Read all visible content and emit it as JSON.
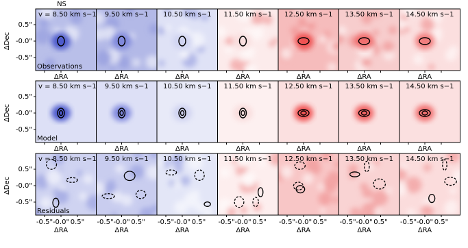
{
  "figure": {
    "title": "NS",
    "columns": [
      "v = 8.50 km s−1",
      "9.50 km s−1",
      "10.50 km s−1",
      "11.50 km s−1",
      "12.50 km s−1",
      "13.50 km s−1",
      "14.50 km s−1"
    ],
    "rows": [
      "Observations",
      "Model",
      "Residuals"
    ],
    "ylabel": "ΔDec",
    "xlabel": "ΔRA",
    "yticks": [
      "0.5\"",
      "-0.0\"",
      "-0.5\""
    ],
    "xticks": [
      "-0.5\"",
      "-0.0\"",
      "0.5\""
    ]
  }
}
